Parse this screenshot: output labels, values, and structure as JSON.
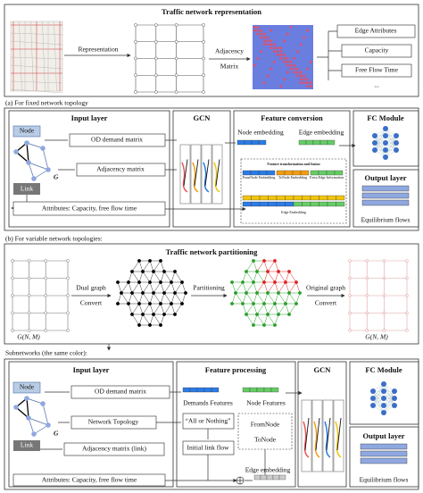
{
  "top_panel": {
    "title": "Traffic network representation",
    "representation": "Representation",
    "adjacency": "Adjacency",
    "matrix": "Matrix",
    "edge_attributes": "Edge Attributes",
    "capacity": "Capacity",
    "free_flow_time": "Free Flow Time",
    "more": "..."
  },
  "label_a": "(a) For fixed network topology",
  "section_a": {
    "input_title": "Input layer",
    "node": "Node",
    "graph": "G",
    "od": "OD demand matrix",
    "adjacency": "Adjacency matrix",
    "link": "Link",
    "attributes": "Attributes: Capacity, free flow time",
    "gcn": "GCN",
    "conv_title": "Feature conversion",
    "node_emb": "Node embedding",
    "edge_emb": "Edge embedding",
    "fusion": "Feature transformation and fusion",
    "from_emb": "FromNode Embedding",
    "to_emb": "ToNode Embedding",
    "extra": "Extra Edge Information",
    "edge_emb_small": "Edge Embedding",
    "fc": "FC Module",
    "output": "Output layer",
    "flows": "Equilibrium flows"
  },
  "label_b": "(b) For variable network topologies:",
  "partition_panel": {
    "title": "Traffic network partitioning",
    "dual": "Dual graph",
    "convert1": "Convert",
    "partitioning": "Partitioning",
    "original": "Original graph",
    "convert2": "Convert",
    "g_left": "G(N, M)",
    "g_right": "G(N, M)"
  },
  "label_sub": "Subnetworks (the same color):",
  "section_b": {
    "input_title": "Input layer",
    "node": "Node",
    "graph": "G",
    "od": "OD demand matrix",
    "topology": "Network Topology",
    "link": "Link",
    "adjacency": "Adjacency matrix (link)",
    "attributes": "Attributes: Capacity, free flow time",
    "proc_title": "Feature processing",
    "demands": "Demands Features",
    "node_features": "Node Features",
    "aon": "“All or Nothing”",
    "from_node": "FromNode",
    "to_node": "ToNode",
    "initial": "Initial link flow",
    "edge_emb": "Edge embedding",
    "gcn": "GCN",
    "fc": "FC Module",
    "output": "Output layer",
    "flows": "Equilibrium flows"
  }
}
